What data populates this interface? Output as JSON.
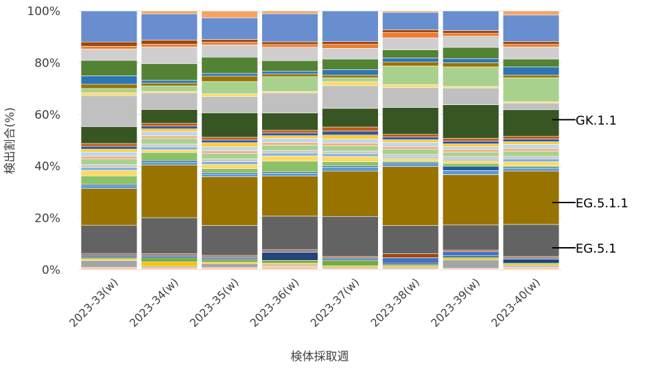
{
  "chart_data": {
    "type": "bar",
    "stacked": true,
    "percent": true,
    "title": "",
    "xlabel": "検体採取週",
    "ylabel": "検出割合(%)",
    "ylim": [
      0,
      100
    ],
    "yticks": [
      "0%",
      "20%",
      "40%",
      "60%",
      "80%",
      "100%"
    ],
    "grid": true,
    "legend": "none",
    "categories": [
      "2023-33(w)",
      "2023-34(w)",
      "2023-35(w)",
      "2023-36(w)",
      "2023-37(w)",
      "2023-38(w)",
      "2023-39(w)",
      "2023-40(w)"
    ],
    "palette": [
      "#f4a460",
      "#5b9bd5",
      "#a5a5a5",
      "#ffc000",
      "#4472c4",
      "#70ad47",
      "#264478",
      "#9e480e",
      "#636363",
      "#997300",
      "#255e91",
      "#43682b",
      "#698ed0",
      "#f1975a",
      "#b7b7b7",
      "#ffcd33",
      "#7cafdd",
      "#8cc168",
      "#335aa1",
      "#d26012",
      "#c9c9c9",
      "#a9d18e",
      "#ed7d31",
      "#c55a11",
      "#bdd7ee",
      "#ffd966",
      "#2e75b6",
      "#548235",
      "#f8cbad",
      "#8faadc"
    ],
    "series": [
      {
        "name": "",
        "color": "#f8cbad",
        "values": [
          0.8,
          0.8,
          0.8,
          1.5,
          0.5,
          0.5,
          0.5,
          1.0
        ]
      },
      {
        "name": "",
        "color": "#a5a5a5",
        "values": [
          2.5,
          0.5,
          1.5,
          0.5,
          0.5,
          0.5,
          3.0,
          0.5
        ]
      },
      {
        "name": "",
        "color": "#ffc000",
        "values": [
          0.5,
          1.5,
          0.5,
          0.5,
          0.5,
          0.5,
          0.5,
          0.5
        ]
      },
      {
        "name": "",
        "color": "#70ad47",
        "values": [
          0.5,
          1.5,
          1.0,
          1.0,
          2.0,
          0.5,
          0.5,
          0.5
        ]
      },
      {
        "name": "",
        "color": "#264478",
        "values": [
          0.5,
          0.5,
          0.5,
          3.0,
          0.5,
          0.5,
          0.5,
          1.5
        ]
      },
      {
        "name": "",
        "color": "#4472c4",
        "values": [
          0.5,
          0.5,
          0.5,
          0.5,
          0.5,
          2.0,
          1.5,
          0.5
        ]
      },
      {
        "name": "",
        "color": "#9e480e",
        "values": [
          0.5,
          0.5,
          0.5,
          0.5,
          0.5,
          1.5,
          0.5,
          0.5
        ]
      },
      {
        "name": "EG.5.1",
        "color": "#636363",
        "values": [
          10.0,
          13.0,
          11.0,
          12.5,
          15.0,
          10.5,
          9.0,
          12.0
        ]
      },
      {
        "name": "EG.5.1.1",
        "color": "#997300",
        "values": [
          13.0,
          19.0,
          18.0,
          15.0,
          17.0,
          22.0,
          18.0,
          20.0
        ]
      },
      {
        "name": "",
        "color": "#5b9bd5",
        "values": [
          1.0,
          1.0,
          1.0,
          1.0,
          1.5,
          1.0,
          1.5,
          1.0
        ]
      },
      {
        "name": "",
        "color": "#255e91",
        "values": [
          0.5,
          0.5,
          0.5,
          0.5,
          0.5,
          0.5,
          1.5,
          0.5
        ]
      },
      {
        "name": "",
        "color": "#8cc168",
        "values": [
          3.0,
          3.0,
          1.5,
          4.0,
          1.5,
          0.5,
          1.0,
          0.5
        ]
      },
      {
        "name": "",
        "color": "#ffd966",
        "values": [
          2.0,
          1.0,
          1.5,
          2.0,
          2.0,
          1.0,
          1.0,
          1.5
        ]
      },
      {
        "name": "",
        "color": "#7cafdd",
        "values": [
          1.0,
          1.0,
          1.0,
          1.0,
          1.0,
          0.5,
          0.5,
          1.0
        ]
      },
      {
        "name": "",
        "color": "#c9c9c9",
        "values": [
          1.0,
          1.0,
          1.0,
          1.0,
          1.0,
          1.0,
          1.0,
          1.0
        ]
      },
      {
        "name": "",
        "color": "#a9d18e",
        "values": [
          2.0,
          2.0,
          2.0,
          2.0,
          2.0,
          2.0,
          1.5,
          2.0
        ]
      },
      {
        "name": "",
        "color": "#f4b183",
        "values": [
          1.0,
          1.0,
          1.0,
          1.0,
          1.0,
          1.0,
          1.0,
          1.0
        ]
      },
      {
        "name": "",
        "color": "#bdd7ee",
        "values": [
          1.5,
          1.5,
          1.5,
          1.5,
          1.5,
          1.5,
          1.0,
          1.5
        ]
      },
      {
        "name": "",
        "color": "#ffcd33",
        "values": [
          1.0,
          1.0,
          1.5,
          1.0,
          1.5,
          1.0,
          1.0,
          1.0
        ]
      },
      {
        "name": "",
        "color": "#335aa1",
        "values": [
          1.0,
          1.0,
          1.0,
          1.0,
          1.5,
          1.0,
          1.0,
          1.0
        ]
      },
      {
        "name": "",
        "color": "#c55a11",
        "values": [
          1.0,
          1.0,
          1.0,
          1.0,
          1.5,
          1.0,
          1.0,
          1.0
        ]
      },
      {
        "name": "GK.1.1",
        "color": "#375623",
        "values": [
          6.0,
          5.0,
          9.0,
          6.5,
          7.0,
          10.0,
          12.0,
          10.0
        ]
      },
      {
        "name": "",
        "color": "#c0c0c0",
        "values": [
          11.0,
          6.0,
          6.0,
          7.5,
          8.5,
          7.5,
          6.0,
          2.5
        ]
      },
      {
        "name": "",
        "color": "#ffd966",
        "values": [
          1.0,
          0.5,
          1.0,
          0.5,
          1.5,
          1.0,
          0.5,
          0.5
        ]
      },
      {
        "name": "",
        "color": "#a9d18e",
        "values": [
          1.5,
          2.0,
          4.5,
          5.5,
          1.5,
          7.0,
          7.0,
          9.0
        ]
      },
      {
        "name": "",
        "color": "#997300",
        "values": [
          1.5,
          1.0,
          2.0,
          1.0,
          1.0,
          1.5,
          1.5,
          1.0
        ]
      },
      {
        "name": "",
        "color": "#2e75b6",
        "values": [
          3.0,
          1.0,
          1.0,
          1.0,
          2.0,
          1.5,
          1.5,
          3.0
        ]
      },
      {
        "name": "",
        "color": "#548235",
        "values": [
          5.5,
          6.0,
          6.0,
          4.0,
          4.0,
          3.0,
          4.0,
          3.0
        ]
      },
      {
        "name": "",
        "color": "#d0cece",
        "values": [
          4.0,
          6.0,
          4.5,
          5.0,
          4.0,
          4.5,
          4.0,
          4.5
        ]
      },
      {
        "name": "",
        "color": "#ed7d31",
        "values": [
          1.0,
          1.0,
          1.0,
          1.0,
          1.5,
          2.0,
          1.0,
          1.0
        ]
      },
      {
        "name": "",
        "color": "#9e480e",
        "values": [
          1.5,
          1.5,
          1.0,
          1.0,
          1.0,
          1.0,
          1.0,
          1.0
        ]
      },
      {
        "name": "",
        "color": "#698ed0",
        "values": [
          11.0,
          9.5,
          8.0,
          10.5,
          11.5,
          6.5,
          7.0,
          10.0
        ]
      },
      {
        "name": "",
        "color": "#f4a460",
        "values": [
          0.0,
          1.0,
          2.5,
          1.0,
          0.0,
          0.5,
          0.0,
          1.5
        ]
      }
    ],
    "annotations": [
      {
        "label": "GK.1.1",
        "category": "2023-40(w)",
        "y": 58
      },
      {
        "label": "EG.5.1.1",
        "category": "2023-40(w)",
        "y": 26
      },
      {
        "label": "EG.5.1",
        "category": "2023-40(w)",
        "y": 8.5
      }
    ]
  }
}
